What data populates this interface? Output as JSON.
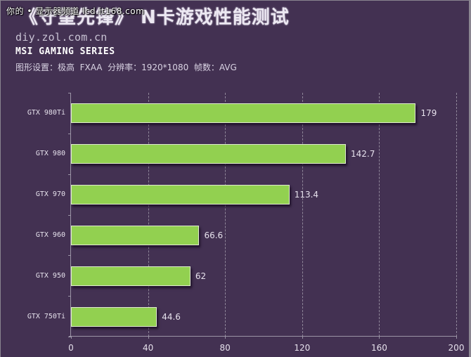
{
  "watermark": "你的 • 显示器频道 lcd.it168.com",
  "header": {
    "title": "《守望先锋》 N卡游戏性能测试",
    "source": "diy.zol.com.cn",
    "series_name": "MSI GAMING SERIES",
    "settings": "图形设置：极高  FXAA  分辨率：1920*1080  帧数：AVG"
  },
  "colors": {
    "background": "#433152",
    "bar": "#92d050",
    "bar_border": "#dfe9cf",
    "text": "#e6e1ec"
  },
  "chart_data": {
    "type": "bar",
    "orientation": "horizontal",
    "title": "《守望先锋》 N卡游戏性能测试",
    "subtitle": "MSI GAMING SERIES — 图形设置：极高 FXAA 分辨率：1920*1080 帧数：AVG",
    "categories": [
      "GTX 980Ti",
      "GTX 980",
      "GTX 970",
      "GTX 960",
      "GTX 950",
      "GTX 750Ti"
    ],
    "values": [
      179,
      142.7,
      113.4,
      66.6,
      62,
      44.6
    ],
    "value_labels": [
      "179",
      "142.7",
      "113.4",
      "66.6",
      "62",
      "44.6"
    ],
    "xlabel": "",
    "ylabel": "",
    "xlim": [
      0,
      200
    ],
    "x_ticks": [
      "0",
      "40",
      "80",
      "120",
      "160",
      "200"
    ],
    "grid": "vertical dashed",
    "legend": "none"
  }
}
